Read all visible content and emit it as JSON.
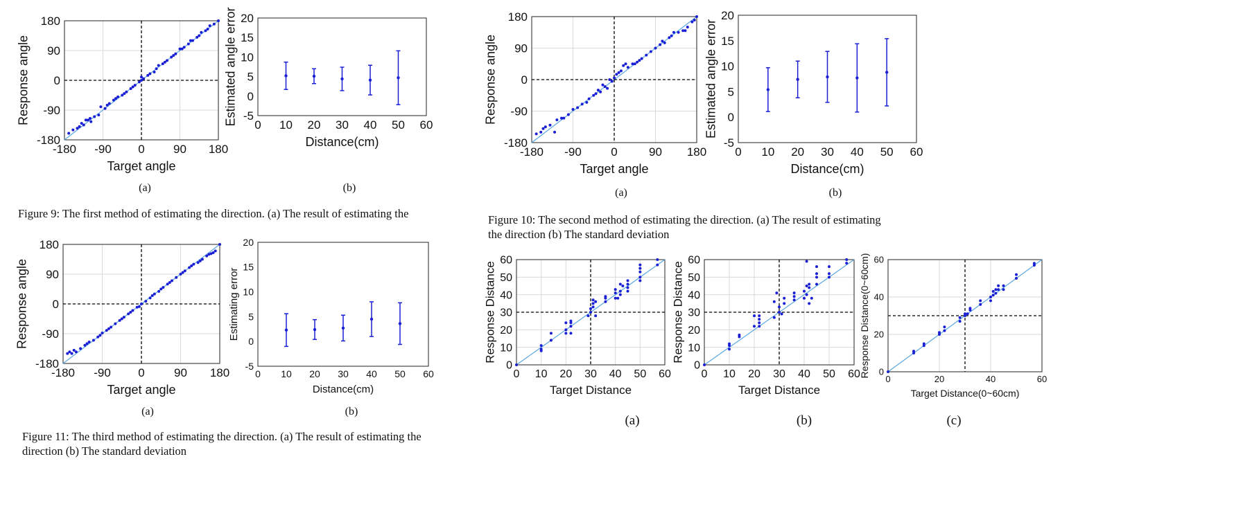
{
  "figures": [
    {
      "id": "fig9",
      "caption": "Figure 9: The first method of estimating the direction. (a) The result of estimating the",
      "sublabels": [
        "(a)",
        "(b)"
      ]
    },
    {
      "id": "fig10",
      "caption_line1": "Figure 10: The second method of estimating the direction. (a) The result of estimating",
      "caption_line2": "the direction (b) The standard deviation",
      "sublabels": [
        "(a)",
        "(b)"
      ]
    },
    {
      "id": "fig11",
      "caption_line1": "Figure 11: The third method of estimating the direction. (a) The result of estimating the",
      "caption_line2": "direction (b) The standard deviation",
      "sublabels": [
        "(a)",
        "(b)"
      ]
    },
    {
      "id": "fig12",
      "sublabels": [
        "(a)",
        "(b)",
        "(c)"
      ]
    }
  ],
  "colors": {
    "points": "#1a1fd6",
    "fit_line": "#5aa7e0",
    "grid": "#d9d9d9",
    "dashed": "#000000"
  },
  "chart_data": [
    {
      "id": "fig9a",
      "type": "scatter",
      "xlabel": "Target angle",
      "ylabel": "Response angle",
      "xlim": [
        -180,
        180
      ],
      "ylim": [
        -180,
        180
      ],
      "xticks": [
        -180,
        -90,
        0,
        90,
        180
      ],
      "yticks": [
        -180,
        -90,
        0,
        90,
        180
      ],
      "grid": true,
      "reference_line": "y=x",
      "crosshair": [
        0,
        0
      ],
      "x": [
        -170,
        -160,
        -150,
        -145,
        -140,
        -135,
        -130,
        -125,
        -120,
        -118,
        -110,
        -100,
        -95,
        -85,
        -80,
        -75,
        -65,
        -60,
        -55,
        -45,
        -40,
        -35,
        -25,
        -20,
        -15,
        -5,
        0,
        0,
        5,
        15,
        20,
        30,
        35,
        40,
        50,
        55,
        60,
        70,
        75,
        80,
        90,
        95,
        100,
        110,
        115,
        120,
        130,
        135,
        140,
        150,
        155,
        160,
        170,
        180
      ],
      "y": [
        -160,
        -150,
        -145,
        -140,
        -130,
        -135,
        -120,
        -120,
        -115,
        -125,
        -110,
        -105,
        -80,
        -85,
        -75,
        -70,
        -60,
        -55,
        -50,
        -45,
        -40,
        -35,
        -25,
        -20,
        -15,
        -5,
        10,
        0,
        5,
        15,
        20,
        25,
        35,
        45,
        50,
        55,
        60,
        70,
        75,
        80,
        95,
        95,
        100,
        110,
        120,
        120,
        130,
        135,
        145,
        150,
        155,
        165,
        170,
        180
      ]
    },
    {
      "id": "fig9b",
      "type": "errorbar",
      "xlabel": "Distance(cm)",
      "ylabel": "Estimated angle error",
      "xlim": [
        0,
        60
      ],
      "ylim": [
        -5,
        20
      ],
      "xticks": [
        0,
        10,
        20,
        30,
        40,
        50,
        60
      ],
      "yticks": [
        -5,
        0,
        5,
        10,
        15,
        20
      ],
      "grid": false,
      "x": [
        10,
        20,
        30,
        40,
        50
      ],
      "y": [
        5.2,
        5.1,
        4.4,
        4.1,
        4.7
      ],
      "err": [
        3.5,
        1.9,
        3.0,
        3.8,
        6.9
      ]
    },
    {
      "id": "fig10a",
      "type": "scatter",
      "xlabel": "Target angle",
      "ylabel": "Response angle",
      "xlim": [
        -180,
        180
      ],
      "ylim": [
        -180,
        180
      ],
      "xticks": [
        -180,
        -90,
        0,
        90,
        180
      ],
      "yticks": [
        -180,
        -90,
        0,
        90,
        180
      ],
      "grid": true,
      "reference_line": "y=x",
      "crosshair": [
        0,
        0
      ],
      "x": [
        -170,
        -160,
        -155,
        -150,
        -140,
        -130,
        -125,
        -115,
        -110,
        -100,
        -90,
        -80,
        -70,
        -60,
        -55,
        -45,
        -40,
        -35,
        -30,
        -25,
        -20,
        -15,
        -10,
        -5,
        0,
        5,
        10,
        15,
        20,
        25,
        30,
        40,
        45,
        50,
        55,
        60,
        70,
        80,
        90,
        100,
        105,
        110,
        120,
        125,
        130,
        140,
        150,
        155,
        160,
        170,
        175,
        180
      ],
      "y": [
        -155,
        -150,
        -140,
        -135,
        -130,
        -150,
        -115,
        -110,
        -110,
        -100,
        -85,
        -80,
        -70,
        -65,
        -55,
        -45,
        -40,
        -30,
        -35,
        -15,
        -20,
        -25,
        0,
        -5,
        5,
        15,
        20,
        25,
        40,
        45,
        35,
        45,
        45,
        50,
        55,
        60,
        70,
        80,
        90,
        100,
        110,
        105,
        120,
        125,
        135,
        135,
        140,
        140,
        150,
        165,
        170,
        180
      ]
    },
    {
      "id": "fig10b",
      "type": "errorbar",
      "xlabel": "Distance(cm)",
      "ylabel": "Estimated angle error",
      "xlim": [
        0,
        60
      ],
      "ylim": [
        -5,
        20
      ],
      "xticks": [
        0,
        10,
        20,
        30,
        40,
        50,
        60
      ],
      "yticks": [
        -5,
        0,
        5,
        10,
        15,
        20
      ],
      "grid": false,
      "x": [
        10,
        20,
        30,
        40,
        50
      ],
      "y": [
        5.4,
        7.4,
        7.9,
        7.7,
        8.8
      ],
      "err": [
        4.3,
        3.6,
        5.0,
        6.7,
        6.6
      ]
    },
    {
      "id": "fig11a",
      "type": "scatter",
      "xlabel": "Target angle",
      "ylabel": "Response angle",
      "xlim": [
        -180,
        180
      ],
      "ylim": [
        -180,
        180
      ],
      "xticks": [
        -180,
        -90,
        0,
        90,
        180
      ],
      "yticks": [
        -180,
        -90,
        0,
        90,
        180
      ],
      "grid": true,
      "reference_line": "y=x",
      "crosshair": [
        0,
        0
      ],
      "x": [
        -170,
        -165,
        -160,
        -155,
        -150,
        -140,
        -130,
        -125,
        -120,
        -110,
        -100,
        -95,
        -90,
        -80,
        -75,
        -70,
        -60,
        -50,
        -45,
        -40,
        -30,
        -25,
        -20,
        -10,
        -5,
        0,
        10,
        20,
        25,
        30,
        40,
        45,
        50,
        60,
        65,
        70,
        80,
        90,
        95,
        100,
        110,
        115,
        120,
        130,
        135,
        140,
        150,
        155,
        160,
        165,
        170,
        180
      ],
      "y": [
        -150,
        -145,
        -150,
        -140,
        -145,
        -135,
        -125,
        -120,
        -115,
        -110,
        -100,
        -95,
        -88,
        -80,
        -75,
        -70,
        -60,
        -50,
        -45,
        -40,
        -30,
        -25,
        -20,
        -10,
        -8,
        0,
        8,
        18,
        25,
        30,
        38,
        45,
        50,
        60,
        65,
        70,
        80,
        90,
        95,
        100,
        110,
        115,
        120,
        125,
        130,
        135,
        145,
        150,
        152,
        155,
        160,
        180
      ]
    },
    {
      "id": "fig11b",
      "type": "errorbar",
      "xlabel": "Distance(cm)",
      "ylabel": "Estimating error",
      "xlim": [
        0,
        60
      ],
      "ylim": [
        -5,
        20
      ],
      "xticks": [
        0,
        10,
        20,
        30,
        40,
        50,
        60
      ],
      "yticks": [
        -5,
        0,
        5,
        10,
        15,
        20
      ],
      "grid": false,
      "x": [
        10,
        20,
        30,
        40,
        50
      ],
      "y": [
        2.3,
        2.4,
        2.7,
        4.5,
        3.6
      ],
      "err": [
        3.3,
        2.0,
        2.6,
        3.5,
        4.2
      ]
    },
    {
      "id": "fig12a",
      "type": "scatter",
      "xlabel": "Target Distance",
      "ylabel": "Response Distance",
      "xlim": [
        0,
        60
      ],
      "ylim": [
        0,
        60
      ],
      "xticks": [
        0,
        10,
        20,
        30,
        40,
        50,
        60
      ],
      "yticks": [
        0,
        10,
        20,
        30,
        40,
        50,
        60
      ],
      "grid": true,
      "reference_line": "y=x",
      "crosshair": [
        30,
        30
      ],
      "x": [
        0,
        10,
        10,
        10,
        14,
        14,
        20,
        20,
        20,
        22,
        22,
        22,
        22,
        29,
        30,
        30,
        31,
        31,
        31,
        32,
        32,
        36,
        36,
        36,
        40,
        40,
        40,
        41,
        42,
        42,
        42,
        43,
        45,
        45,
        45,
        45,
        50,
        50,
        50,
        50,
        50,
        57,
        57
      ],
      "y": [
        0,
        8,
        9,
        11,
        14,
        18,
        18,
        20,
        24,
        18,
        22,
        24,
        25,
        28,
        30,
        32,
        33,
        35,
        37,
        28,
        36,
        36,
        38,
        39,
        38,
        41,
        43,
        38,
        40,
        42,
        46,
        45,
        42,
        44,
        46,
        48,
        48,
        50,
        53,
        55,
        57,
        57,
        60
      ]
    },
    {
      "id": "fig12b",
      "type": "scatter",
      "xlabel": "Target Distance",
      "ylabel": "Response Distance",
      "xlim": [
        0,
        60
      ],
      "ylim": [
        0,
        60
      ],
      "xticks": [
        0,
        10,
        20,
        30,
        40,
        50,
        60
      ],
      "yticks": [
        0,
        10,
        20,
        30,
        40,
        50,
        60
      ],
      "grid": true,
      "reference_line": "y=x",
      "crosshair": [
        30,
        30
      ],
      "x": [
        0,
        10,
        10,
        10,
        14,
        14,
        20,
        20,
        22,
        22,
        22,
        22,
        28,
        28,
        29,
        30,
        30,
        31,
        32,
        32,
        36,
        36,
        36,
        40,
        40,
        41,
        41,
        41,
        42,
        42,
        42,
        43,
        45,
        45,
        45,
        45,
        50,
        50,
        50,
        57,
        57
      ],
      "y": [
        0,
        9,
        11,
        12,
        16,
        17,
        22,
        28,
        24,
        26,
        28,
        22,
        27,
        36,
        41,
        30,
        33,
        29,
        35,
        38,
        37,
        39,
        41,
        38,
        42,
        45,
        59,
        40,
        44,
        46,
        35,
        38,
        46,
        50,
        52,
        56,
        50,
        52,
        56,
        58,
        60
      ]
    },
    {
      "id": "fig12c",
      "type": "scatter",
      "xlabel": "Target Distance(0~60cm)",
      "ylabel": "Response Distance(0~60cm)",
      "xlim": [
        0,
        60
      ],
      "ylim": [
        0,
        60
      ],
      "xticks": [
        0,
        20,
        40,
        60
      ],
      "yticks": [
        0,
        20,
        40,
        60
      ],
      "grid": true,
      "reference_line": "y=x",
      "crosshair": [
        30,
        30
      ],
      "x": [
        0,
        10,
        10,
        14,
        14,
        20,
        20,
        22,
        22,
        28,
        28,
        30,
        30,
        31,
        32,
        32,
        36,
        36,
        40,
        40,
        41,
        41,
        42,
        42,
        43,
        43,
        45,
        45,
        50,
        50,
        57,
        57
      ],
      "y": [
        0,
        10,
        11,
        14,
        15,
        20,
        21,
        22,
        24,
        27,
        29,
        30,
        31,
        31,
        33,
        34,
        36,
        38,
        38,
        40,
        41,
        43,
        42,
        44,
        44,
        46,
        44,
        46,
        50,
        52,
        57,
        58
      ]
    }
  ]
}
